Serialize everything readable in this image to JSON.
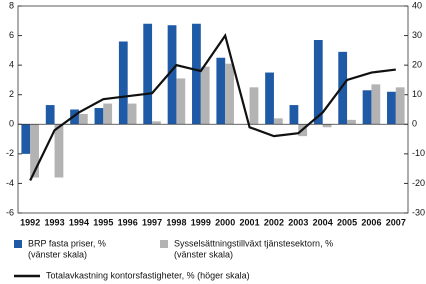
{
  "chart_data": {
    "type": "bar_line",
    "categories": [
      "1992",
      "1993",
      "1994",
      "1995",
      "1996",
      "1997",
      "1998",
      "1999",
      "2000",
      "2001",
      "2002",
      "2003",
      "2004",
      "2005",
      "2006",
      "2007"
    ],
    "series": [
      {
        "name": "BRP fasta priser, %",
        "note": "(vänster skala)",
        "color": "#1f5aa6",
        "type": "bar",
        "values": [
          -2.0,
          1.3,
          1.0,
          1.1,
          5.6,
          6.8,
          6.7,
          6.8,
          4.5,
          0.0,
          3.5,
          1.3,
          5.7,
          4.9,
          2.3,
          2.2
        ]
      },
      {
        "name": "Sysselsättningstillväxt tjänstesektorn, %",
        "note": "(vänster skala)",
        "color": "#b3b3b3",
        "type": "bar",
        "values": [
          -3.6,
          -3.6,
          0.7,
          1.4,
          1.4,
          0.2,
          3.1,
          3.9,
          4.1,
          2.5,
          0.4,
          -0.8,
          -0.2,
          0.3,
          2.7,
          2.5
        ]
      },
      {
        "name": "Totalavkastning kontorsfastigheter, % (höger skala)",
        "color": "#111111",
        "type": "line",
        "axis": "y2",
        "values": [
          -19,
          -2,
          4,
          8.5,
          9.5,
          10.5,
          20,
          18,
          30,
          -1,
          -4,
          -3,
          4,
          15,
          17.5,
          18.5
        ]
      }
    ],
    "ylim": [
      -6,
      8
    ],
    "yticks": [
      -6,
      -4,
      -2,
      0,
      2,
      4,
      6,
      8
    ],
    "y2lim": [
      -30,
      40
    ],
    "y2ticks": [
      -30,
      -20,
      -10,
      0,
      10,
      20,
      30,
      40
    ]
  }
}
